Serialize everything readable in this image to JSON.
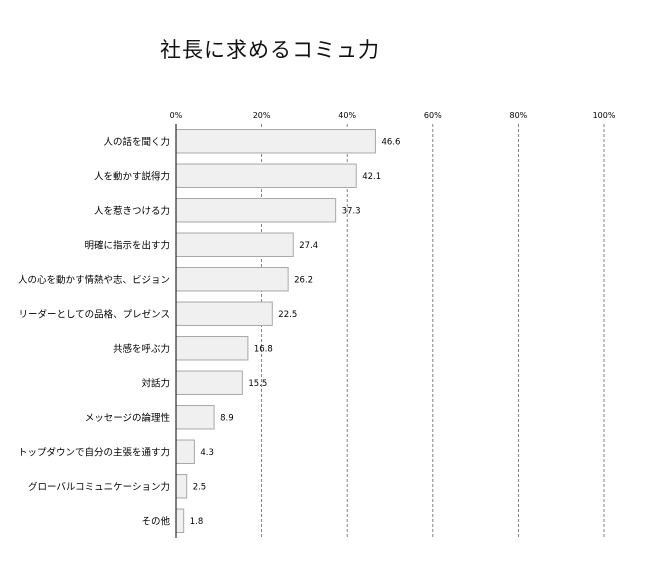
{
  "chart_data": {
    "type": "bar",
    "orientation": "horizontal",
    "title": "社長に求めるコミュ力",
    "xlim": [
      0,
      100
    ],
    "x_ticks": [
      "0%",
      "20%",
      "40%",
      "60%",
      "80%",
      "100%"
    ],
    "grid": true,
    "categories": [
      "人の話を聞く力",
      "人を動かす説得力",
      "人を惹きつける力",
      "明確に指示を出す力",
      "人の心を動かす情熱や志、ビジョン",
      "リーダーとしての品格、プレゼンス",
      "共感を呼ぶ力",
      "対話力",
      "メッセージの論理性",
      "トップダウンで自分の主張を通す力",
      "グローバルコミュニケーション力",
      "その他"
    ],
    "values": [
      46.6,
      42.1,
      37.3,
      27.4,
      26.2,
      22.5,
      16.8,
      15.5,
      8.9,
      4.3,
      2.5,
      1.8
    ],
    "value_labels": [
      "46.6",
      "42.1",
      "37.3",
      "27.4",
      "26.2",
      "22.5",
      "16.8",
      "15.5",
      "8.9",
      "4.3",
      "2.5",
      "1.8"
    ]
  }
}
